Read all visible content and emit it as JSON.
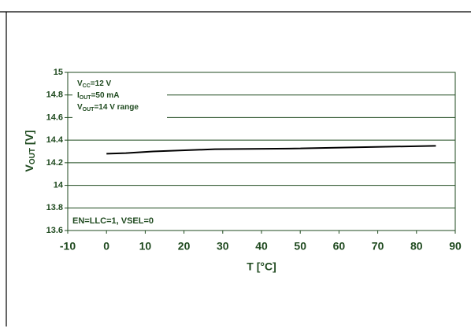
{
  "chart_data": {
    "type": "line",
    "x_label": "T [°C]",
    "y_label": [
      "V",
      "OUT",
      " [V]"
    ],
    "x": [
      0,
      5,
      12,
      28,
      47,
      85
    ],
    "series": [
      {
        "color": "#000000",
        "values": [
          14.28,
          14.285,
          14.3,
          14.32,
          14.325,
          14.35
        ]
      }
    ],
    "xlim": [
      -10,
      90
    ],
    "xticks": [
      -10,
      0,
      10,
      20,
      30,
      40,
      50,
      60,
      70,
      80,
      90
    ],
    "ylim": [
      13.6,
      15
    ],
    "yticks": [
      13.6,
      13.8,
      14,
      14.2,
      14.4,
      14.6,
      14.8,
      15
    ],
    "grid": true,
    "annotations": [
      [
        "V",
        "CC",
        "=12 V"
      ],
      [
        "I",
        "OUT",
        "=50 mA"
      ],
      [
        "V",
        "OUT",
        "=14 V range"
      ]
    ],
    "footnote": "EN=LLC=1, VSEL=0"
  }
}
